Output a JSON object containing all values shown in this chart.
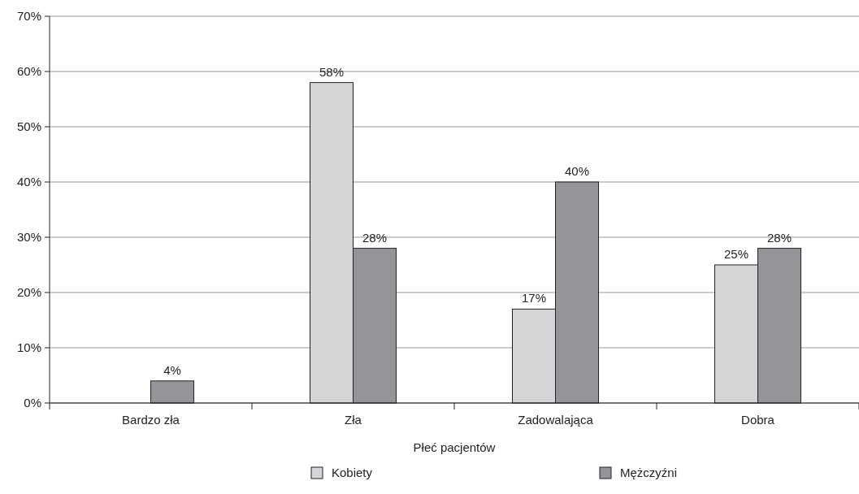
{
  "chart_data": {
    "type": "bar",
    "xlabel": "Płeć pacjentów",
    "categories": [
      "Bardzo zła",
      "Zła",
      "Zadowalająca",
      "Dobra"
    ],
    "series": [
      {
        "name": "Kobiety",
        "color": "#d4d5d7",
        "values": [
          null,
          58,
          17,
          25
        ],
        "value_labels": [
          null,
          "58%",
          "17%",
          "25%"
        ]
      },
      {
        "name": "Mężczyźni",
        "color": "#939599",
        "values": [
          4,
          28,
          40,
          28
        ],
        "value_labels": [
          "4%",
          "28%",
          "40%",
          "28%"
        ]
      }
    ],
    "ylim": [
      0,
      70
    ],
    "yticks": [
      {
        "value": 0,
        "label": "0%"
      },
      {
        "value": 10,
        "label": "10%"
      },
      {
        "value": 20,
        "label": "20%"
      },
      {
        "value": 30,
        "label": "30%"
      },
      {
        "value": 40,
        "label": "40%"
      },
      {
        "value": 50,
        "label": "50%"
      },
      {
        "value": 60,
        "label": "60%"
      },
      {
        "value": 70,
        "label": "70%"
      }
    ],
    "grid": "y",
    "legend": "bottom"
  }
}
